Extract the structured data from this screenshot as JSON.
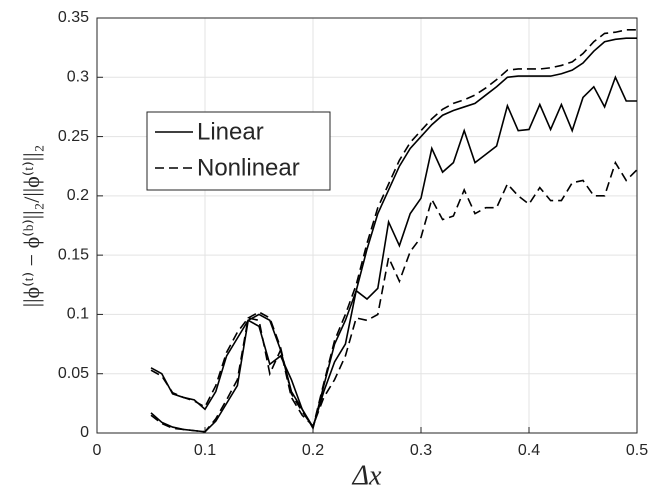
{
  "chart_data": {
    "type": "line",
    "xlabel": "Δx",
    "ylabel": "||ϕ⁽ᵗ⁾ − ϕ⁽ᵇ⁾||₂/||ϕ⁽ᵗ⁾||₂",
    "x": [
      0.05,
      0.06,
      0.07,
      0.08,
      0.09,
      0.1,
      0.11,
      0.12,
      0.13,
      0.14,
      0.15,
      0.16,
      0.17,
      0.18,
      0.19,
      0.2,
      0.21,
      0.22,
      0.23,
      0.24,
      0.25,
      0.26,
      0.27,
      0.28,
      0.29,
      0.3,
      0.31,
      0.32,
      0.33,
      0.34,
      0.35,
      0.36,
      0.37,
      0.38,
      0.39,
      0.4,
      0.41,
      0.42,
      0.43,
      0.44,
      0.45,
      0.46,
      0.47,
      0.48,
      0.49,
      0.5
    ],
    "series": [
      {
        "name": "Linear",
        "color": "#000000",
        "dashed": false,
        "values": [
          0.017,
          0.009,
          0.005,
          0.003,
          0.002,
          0.001,
          0.01,
          0.025,
          0.04,
          0.095,
          0.1,
          0.095,
          0.07,
          0.035,
          0.02,
          0.004,
          0.04,
          0.075,
          0.095,
          0.12,
          0.155,
          0.185,
          0.205,
          0.225,
          0.24,
          0.25,
          0.26,
          0.268,
          0.272,
          0.275,
          0.278,
          0.285,
          0.292,
          0.3,
          0.301,
          0.301,
          0.301,
          0.301,
          0.303,
          0.306,
          0.312,
          0.322,
          0.33,
          0.332,
          0.333,
          0.333
        ]
      },
      {
        "name": "Nonlinear",
        "color": "#000000",
        "dashed": true,
        "values": [
          0.015,
          0.008,
          0.004,
          0.003,
          0.002,
          0.001,
          0.012,
          0.028,
          0.045,
          0.097,
          0.102,
          0.097,
          0.072,
          0.033,
          0.018,
          0.005,
          0.042,
          0.078,
          0.1,
          0.125,
          0.16,
          0.19,
          0.21,
          0.23,
          0.245,
          0.255,
          0.265,
          0.273,
          0.278,
          0.281,
          0.285,
          0.291,
          0.298,
          0.306,
          0.307,
          0.307,
          0.307,
          0.308,
          0.31,
          0.313,
          0.32,
          0.33,
          0.337,
          0.338,
          0.34,
          0.34
        ]
      },
      {
        "name": "Linear",
        "color": "#000000",
        "dashed": false,
        "values": [
          0.055,
          0.05,
          0.033,
          0.03,
          0.028,
          0.02,
          0.035,
          0.065,
          0.08,
          0.095,
          0.09,
          0.058,
          0.065,
          0.045,
          0.02,
          0.005,
          0.035,
          0.06,
          0.075,
          0.12,
          0.113,
          0.122,
          0.178,
          0.158,
          0.185,
          0.198,
          0.24,
          0.22,
          0.228,
          0.255,
          0.228,
          0.235,
          0.242,
          0.276,
          0.255,
          0.256,
          0.277,
          0.256,
          0.277,
          0.255,
          0.283,
          0.292,
          0.275,
          0.3,
          0.28,
          0.28
        ]
      },
      {
        "name": "Nonlinear",
        "color": "#000000",
        "dashed": true,
        "values": [
          0.053,
          0.048,
          0.034,
          0.03,
          0.027,
          0.022,
          0.04,
          0.068,
          0.085,
          0.097,
          0.095,
          0.05,
          0.07,
          0.03,
          0.015,
          0.006,
          0.03,
          0.045,
          0.065,
          0.097,
          0.095,
          0.1,
          0.148,
          0.128,
          0.153,
          0.165,
          0.197,
          0.18,
          0.183,
          0.205,
          0.185,
          0.19,
          0.19,
          0.21,
          0.2,
          0.193,
          0.207,
          0.196,
          0.196,
          0.211,
          0.213,
          0.2,
          0.2,
          0.228,
          0.213,
          0.222
        ]
      }
    ],
    "xlim": [
      0,
      0.5
    ],
    "xticks": [
      0,
      0.1,
      0.2,
      0.3,
      0.4,
      0.5
    ],
    "ylim": [
      0,
      0.35
    ],
    "yticks": [
      0,
      0.05,
      0.1,
      0.15,
      0.2,
      0.25,
      0.3,
      0.35
    ],
    "grid": true,
    "legend": "upper left"
  }
}
